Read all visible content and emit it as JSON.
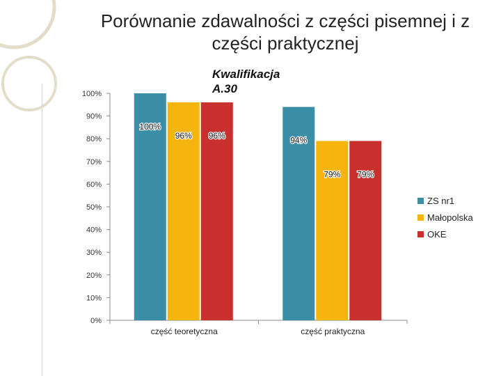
{
  "slide": {
    "title": "Porównanie zdawalności z części pisemnej i z części praktycznej",
    "subtitle": "Kwalifikacja A.30"
  },
  "chart_data": {
    "type": "bar",
    "categories": [
      "część teoretyczna",
      "część praktyczna"
    ],
    "series": [
      {
        "name": "ZS nr1",
        "values": [
          100,
          94
        ],
        "color": "#3a8ea6",
        "labels": [
          "100%",
          "94%"
        ]
      },
      {
        "name": "Małopolska",
        "values": [
          96,
          79
        ],
        "color": "#f6b40e",
        "labels": [
          "96%",
          "79%"
        ]
      },
      {
        "name": "OKE",
        "values": [
          96,
          79
        ],
        "color": "#c8302e",
        "labels": [
          "96%",
          "79%"
        ]
      }
    ],
    "ylim": [
      0,
      100
    ],
    "yticks": [
      "0%",
      "10%",
      "20%",
      "30%",
      "40%",
      "50%",
      "60%",
      "70%",
      "80%",
      "90%",
      "100%"
    ],
    "legend_position": "right",
    "grid": false
  }
}
